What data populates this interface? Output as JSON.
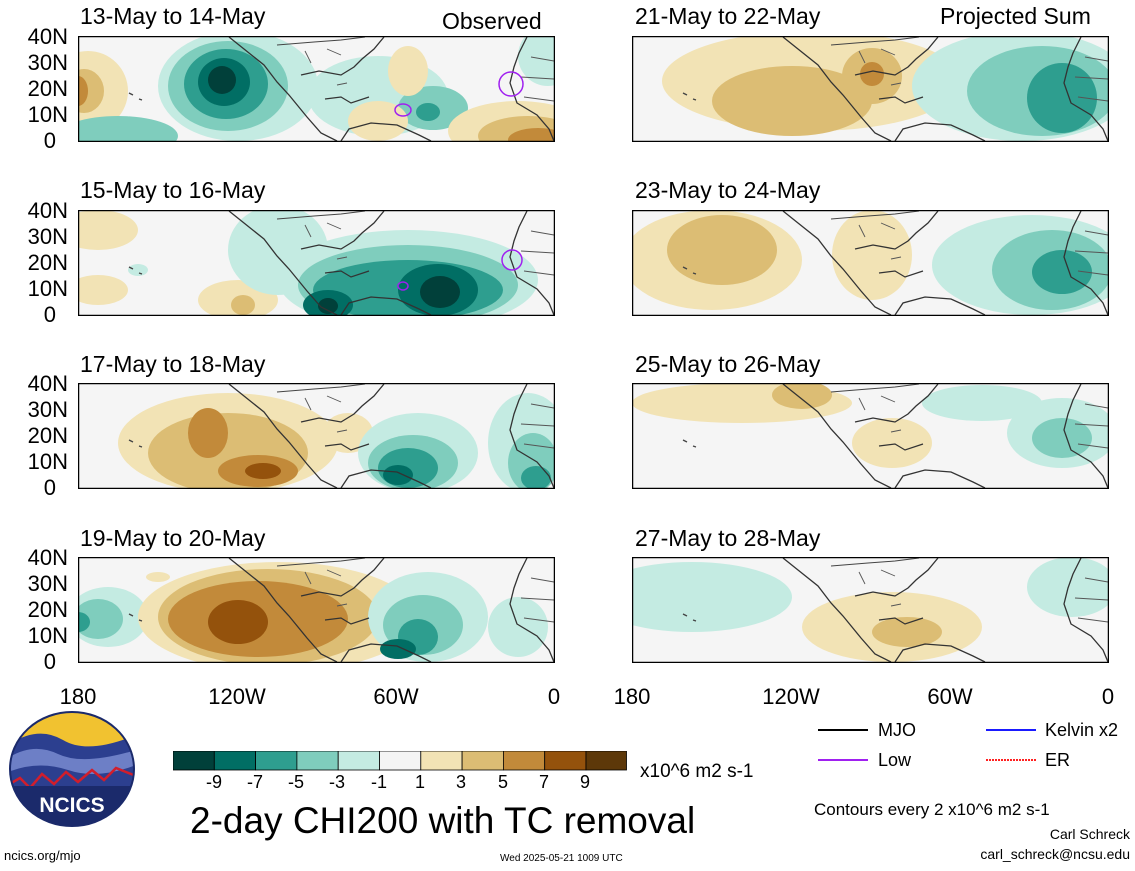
{
  "header": {
    "left_tag": "Observed",
    "right_tag": "Projected Sum"
  },
  "panels": [
    {
      "title": "13-May to 14-May",
      "column": "observed"
    },
    {
      "title": "15-May to 16-May",
      "column": "observed"
    },
    {
      "title": "17-May to 18-May",
      "column": "observed"
    },
    {
      "title": "19-May to 20-May",
      "column": "observed"
    },
    {
      "title": "21-May to 22-May",
      "column": "projected"
    },
    {
      "title": "23-May to 24-May",
      "column": "projected"
    },
    {
      "title": "25-May to 26-May",
      "column": "projected"
    },
    {
      "title": "27-May to 28-May",
      "column": "projected"
    }
  ],
  "axes": {
    "y_ticks": [
      "40N",
      "30N",
      "20N",
      "10N",
      "0"
    ],
    "x_ticks": [
      "180",
      "120W",
      "60W",
      "0"
    ]
  },
  "colorbar": {
    "ticks": [
      "-9",
      "-7",
      "-5",
      "-3",
      "-1",
      "1",
      "3",
      "5",
      "7",
      "9"
    ],
    "units": "x10^6 m2 s-1",
    "colors": [
      "#01403a",
      "#016e64",
      "#2e9e8f",
      "#7fcdbd",
      "#c4ebe2",
      "#f5f5f5",
      "#f2e3b5",
      "#dcbd74",
      "#c28a3a",
      "#94520c",
      "#5d3809"
    ]
  },
  "title": "2-day CHI200 with TC removal",
  "legend": {
    "items": [
      {
        "label": "MJO",
        "color": "#000000"
      },
      {
        "label": "Kelvin x2",
        "color": "#1a1aff"
      },
      {
        "label": "Low",
        "color": "#a020f0"
      },
      {
        "label": "ER",
        "color": "#ff2020"
      }
    ]
  },
  "footer": {
    "contours": "Contours every 2 x10^6 m2 s-1",
    "author": "Carl Schreck",
    "email": "carl_schreck@ncsu.edu",
    "site": "ncics.org/mjo",
    "timestamp": "Wed 2025-05-21 1009 UTC",
    "logo_text": "NCICS"
  }
}
